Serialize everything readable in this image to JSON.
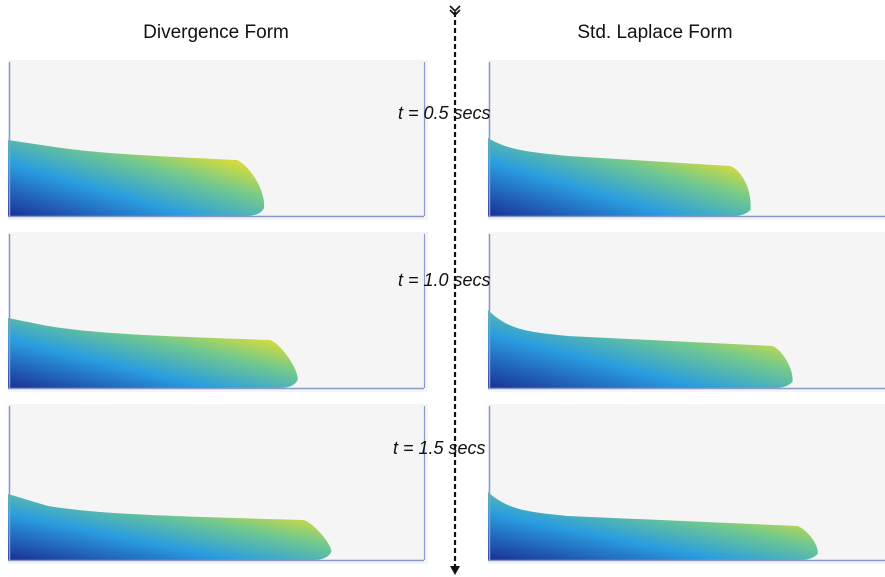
{
  "columns": {
    "left_title": "Divergence Form",
    "right_title": "Std. Laplace Form"
  },
  "time_labels": [
    "t = 0.5 secs",
    "t = 1.0 secs",
    "t = 1.5 secs"
  ],
  "snapshots": [
    {
      "time": "t = 0.5 secs",
      "left": {
        "front_fraction": 0.6,
        "max_color": "#c81e10"
      },
      "right": {
        "front_fraction": 0.62,
        "max_color": "#e0521a"
      }
    },
    {
      "time": "t = 1.0 secs",
      "left": {
        "front_fraction": 0.68,
        "max_color": "#e07a1a"
      },
      "right": {
        "front_fraction": 0.72,
        "max_color": "#a6d24a"
      }
    },
    {
      "time": "t = 1.5 secs",
      "left": {
        "front_fraction": 0.76,
        "max_color": "#b8d83a"
      },
      "right": {
        "front_fraction": 0.78,
        "max_color": "#b8d83a"
      }
    }
  ],
  "colors": {
    "low": "#1a2f96",
    "mid_low": "#2a9de0",
    "mid": "#70c890",
    "mid_high": "#d6dc3a",
    "panel_bg": "#f5f5f5",
    "axis": "#8a9bc8"
  }
}
